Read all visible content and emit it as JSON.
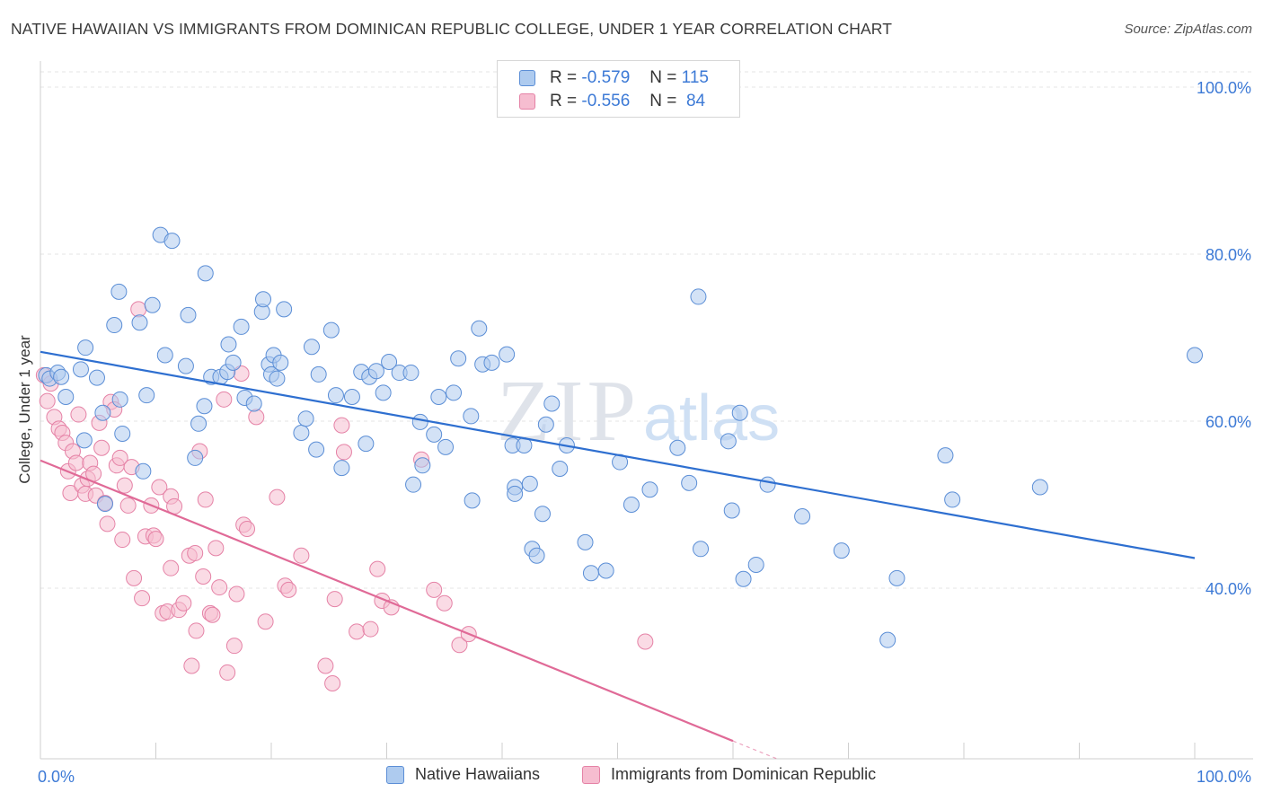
{
  "title": "NATIVE HAWAIIAN VS IMMIGRANTS FROM DOMINICAN REPUBLIC COLLEGE, UNDER 1 YEAR CORRELATION CHART",
  "source": "Source: ZipAtlas.com",
  "watermark": {
    "zip": "ZIP",
    "atlas": "atlas"
  },
  "legend": {
    "r_label": "R =",
    "n_label": "N =",
    "rows": [
      {
        "r": "-0.579",
        "n": "115",
        "fill": "#aecbef",
        "stroke": "#5b8ed6"
      },
      {
        "r": "-0.556",
        "n": "84",
        "fill": "#f6bdd0",
        "stroke": "#e582a6"
      }
    ]
  },
  "bottom_legend": [
    {
      "label": "Native Hawaiians",
      "fill": "#aecbef",
      "stroke": "#5b8ed6"
    },
    {
      "label": "Immigrants from Dominican Republic",
      "fill": "#f6bdd0",
      "stroke": "#e582a6"
    }
  ],
  "chart_data": {
    "type": "scatter",
    "title": "NATIVE HAWAIIAN VS IMMIGRANTS FROM DOMINICAN REPUBLIC COLLEGE, UNDER 1 YEAR CORRELATION CHART",
    "xlabel": "",
    "ylabel": "College, Under 1 year",
    "xlim": [
      0,
      100
    ],
    "ylim": [
      18,
      100
    ],
    "x_tick_labels": [
      "0.0%",
      "100.0%"
    ],
    "y_ticks": [
      40,
      60,
      80,
      100
    ],
    "y_tick_labels": [
      "40.0%",
      "60.0%",
      "80.0%",
      "100.0%"
    ],
    "grid": true,
    "legend_position": "top-center",
    "series": [
      {
        "name": "Native Hawaiians",
        "color": "#5b8ed6",
        "fill": "#aecbef",
        "trend": {
          "x": [
            0,
            100
          ],
          "y": [
            68.3,
            43.6
          ],
          "color": "#2e6fd0"
        },
        "points": [
          [
            0.5,
            65.5
          ],
          [
            0.8,
            65.1
          ],
          [
            1.5,
            65.8
          ],
          [
            1.8,
            65.3
          ],
          [
            2.2,
            62.9
          ],
          [
            3.5,
            66.2
          ],
          [
            3.8,
            57.7
          ],
          [
            3.9,
            68.8
          ],
          [
            4.9,
            65.2
          ],
          [
            5.4,
            61.0
          ],
          [
            5.6,
            50.1
          ],
          [
            6.4,
            71.5
          ],
          [
            6.9,
            62.6
          ],
          [
            7.1,
            58.5
          ],
          [
            6.8,
            75.5
          ],
          [
            8.6,
            71.8
          ],
          [
            8.9,
            54.0
          ],
          [
            9.2,
            63.1
          ],
          [
            9.7,
            73.9
          ],
          [
            10.4,
            82.3
          ],
          [
            10.8,
            67.9
          ],
          [
            11.4,
            81.6
          ],
          [
            12.6,
            66.6
          ],
          [
            12.8,
            72.7
          ],
          [
            13.7,
            59.7
          ],
          [
            13.4,
            55.6
          ],
          [
            14.2,
            61.8
          ],
          [
            14.3,
            77.7
          ],
          [
            14.8,
            65.3
          ],
          [
            15.6,
            65.3
          ],
          [
            16.2,
            65.9
          ],
          [
            16.3,
            69.2
          ],
          [
            16.7,
            67.0
          ],
          [
            17.4,
            71.3
          ],
          [
            17.7,
            62.8
          ],
          [
            18.5,
            62.1
          ],
          [
            19.2,
            73.1
          ],
          [
            19.3,
            74.6
          ],
          [
            19.8,
            66.8
          ],
          [
            20.2,
            67.9
          ],
          [
            20.0,
            65.6
          ],
          [
            20.5,
            65.1
          ],
          [
            20.8,
            67.0
          ],
          [
            21.1,
            73.4
          ],
          [
            22.6,
            58.6
          ],
          [
            23.0,
            60.3
          ],
          [
            23.5,
            68.9
          ],
          [
            23.9,
            56.6
          ],
          [
            24.1,
            65.6
          ],
          [
            25.2,
            70.9
          ],
          [
            25.6,
            63.1
          ],
          [
            26.1,
            54.4
          ],
          [
            27.0,
            62.9
          ],
          [
            27.8,
            65.9
          ],
          [
            28.2,
            57.3
          ],
          [
            28.5,
            65.3
          ],
          [
            29.1,
            66.0
          ],
          [
            29.7,
            63.4
          ],
          [
            30.2,
            67.1
          ],
          [
            31.1,
            65.8
          ],
          [
            32.1,
            65.8
          ],
          [
            32.3,
            52.4
          ],
          [
            32.9,
            59.9
          ],
          [
            33.1,
            54.7
          ],
          [
            34.1,
            58.4
          ],
          [
            34.5,
            62.9
          ],
          [
            35.1,
            56.9
          ],
          [
            35.8,
            63.4
          ],
          [
            36.2,
            67.5
          ],
          [
            37.3,
            60.6
          ],
          [
            37.4,
            50.5
          ],
          [
            38.0,
            71.1
          ],
          [
            38.3,
            66.8
          ],
          [
            39.1,
            67.0
          ],
          [
            40.4,
            68.0
          ],
          [
            40.9,
            57.1
          ],
          [
            41.1,
            52.1
          ],
          [
            41.1,
            51.3
          ],
          [
            41.9,
            57.1
          ],
          [
            42.4,
            52.5
          ],
          [
            42.6,
            44.7
          ],
          [
            43.0,
            43.9
          ],
          [
            43.5,
            48.9
          ],
          [
            43.8,
            59.6
          ],
          [
            44.3,
            62.1
          ],
          [
            45.0,
            54.3
          ],
          [
            45.6,
            57.1
          ],
          [
            47.2,
            45.5
          ],
          [
            47.7,
            41.8
          ],
          [
            49.0,
            42.1
          ],
          [
            50.2,
            55.1
          ],
          [
            51.2,
            50.0
          ],
          [
            52.8,
            51.8
          ],
          [
            55.2,
            56.8
          ],
          [
            56.2,
            52.6
          ],
          [
            57.0,
            74.9
          ],
          [
            57.2,
            44.7
          ],
          [
            59.6,
            57.6
          ],
          [
            59.9,
            49.3
          ],
          [
            60.6,
            61.0
          ],
          [
            60.9,
            41.1
          ],
          [
            62.0,
            42.8
          ],
          [
            63.0,
            52.4
          ],
          [
            66.0,
            48.6
          ],
          [
            69.4,
            44.5
          ],
          [
            73.4,
            33.8
          ],
          [
            74.2,
            41.2
          ],
          [
            78.4,
            55.9
          ],
          [
            79.0,
            50.6
          ],
          [
            86.6,
            52.1
          ],
          [
            100.0,
            67.9
          ]
        ]
      },
      {
        "name": "Immigrants from Dominican Republic",
        "color": "#e582a6",
        "fill": "#f6bdd0",
        "trend": {
          "x": [
            0,
            60
          ],
          "y": [
            55.3,
            21.7
          ],
          "dash_x": [
            60,
            64
          ],
          "color": "#e06a97"
        },
        "points": [
          [
            0.3,
            65.5
          ],
          [
            0.6,
            62.4
          ],
          [
            0.9,
            64.5
          ],
          [
            1.2,
            60.5
          ],
          [
            1.6,
            59.1
          ],
          [
            1.9,
            58.6
          ],
          [
            2.2,
            57.4
          ],
          [
            2.4,
            54.0
          ],
          [
            2.6,
            51.4
          ],
          [
            2.8,
            56.4
          ],
          [
            3.1,
            55.0
          ],
          [
            3.3,
            60.8
          ],
          [
            3.6,
            52.3
          ],
          [
            3.9,
            51.3
          ],
          [
            4.1,
            53.1
          ],
          [
            4.3,
            55.0
          ],
          [
            4.6,
            53.7
          ],
          [
            4.8,
            51.1
          ],
          [
            5.1,
            59.8
          ],
          [
            5.3,
            56.8
          ],
          [
            5.6,
            50.2
          ],
          [
            5.8,
            47.7
          ],
          [
            6.1,
            62.3
          ],
          [
            6.4,
            61.4
          ],
          [
            6.6,
            54.7
          ],
          [
            6.9,
            55.6
          ],
          [
            7.1,
            45.8
          ],
          [
            7.3,
            52.3
          ],
          [
            7.6,
            49.9
          ],
          [
            7.9,
            54.5
          ],
          [
            8.1,
            41.2
          ],
          [
            8.5,
            73.4
          ],
          [
            8.8,
            38.8
          ],
          [
            9.1,
            46.2
          ],
          [
            9.6,
            49.9
          ],
          [
            9.8,
            46.3
          ],
          [
            10.0,
            45.9
          ],
          [
            10.3,
            52.1
          ],
          [
            10.6,
            37.0
          ],
          [
            11.0,
            37.2
          ],
          [
            11.3,
            51.0
          ],
          [
            11.3,
            42.4
          ],
          [
            11.6,
            49.8
          ],
          [
            12.0,
            37.4
          ],
          [
            12.4,
            38.2
          ],
          [
            12.9,
            43.9
          ],
          [
            13.1,
            30.7
          ],
          [
            13.4,
            44.2
          ],
          [
            13.5,
            34.9
          ],
          [
            13.8,
            56.4
          ],
          [
            14.1,
            41.4
          ],
          [
            14.3,
            50.6
          ],
          [
            14.7,
            37.0
          ],
          [
            14.9,
            36.8
          ],
          [
            15.2,
            44.8
          ],
          [
            15.5,
            40.1
          ],
          [
            15.9,
            62.6
          ],
          [
            16.2,
            29.9
          ],
          [
            16.8,
            33.1
          ],
          [
            17.0,
            39.3
          ],
          [
            17.4,
            65.7
          ],
          [
            17.6,
            47.6
          ],
          [
            17.9,
            47.1
          ],
          [
            18.7,
            60.5
          ],
          [
            19.5,
            36.0
          ],
          [
            20.5,
            50.9
          ],
          [
            21.2,
            40.3
          ],
          [
            21.5,
            39.8
          ],
          [
            22.6,
            43.9
          ],
          [
            24.7,
            30.7
          ],
          [
            25.3,
            28.6
          ],
          [
            25.5,
            38.7
          ],
          [
            26.1,
            59.5
          ],
          [
            26.3,
            56.3
          ],
          [
            27.4,
            34.8
          ],
          [
            28.6,
            35.1
          ],
          [
            29.2,
            42.3
          ],
          [
            29.6,
            38.5
          ],
          [
            30.4,
            37.7
          ],
          [
            33.0,
            55.4
          ],
          [
            34.1,
            39.8
          ],
          [
            35.0,
            38.2
          ],
          [
            36.3,
            33.2
          ],
          [
            37.1,
            34.5
          ],
          [
            52.4,
            33.6
          ]
        ]
      }
    ]
  }
}
